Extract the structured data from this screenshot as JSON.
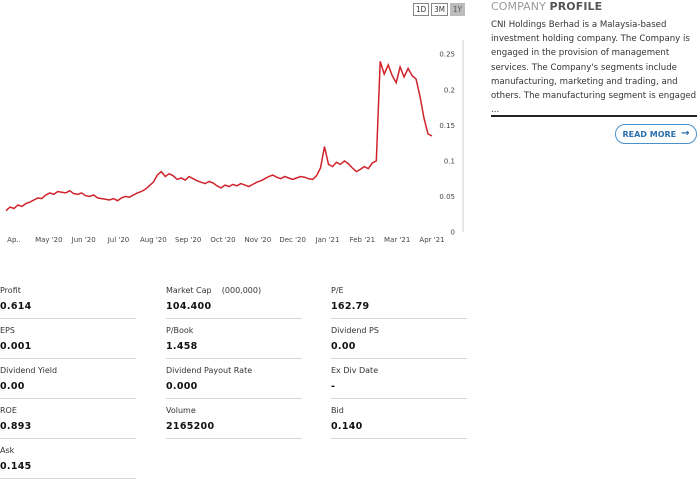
{
  "range_buttons": [
    {
      "label": "1D",
      "active": false
    },
    {
      "label": "3M",
      "active": false
    },
    {
      "label": "1Y",
      "active": true
    }
  ],
  "chart_data": {
    "type": "line",
    "color": "#d0222a",
    "x_labels": [
      "Ap..",
      "May '20",
      "Jun '20",
      "Jul '20",
      "Aug '20",
      "Sep '20",
      "Oct '20",
      "Nov '20",
      "Dec '20",
      "Jan '21",
      "Feb '21",
      "Mar '21",
      "Apr '21"
    ],
    "y_ticks": [
      "0",
      "0.05",
      "0.1",
      "0.15",
      "0.2",
      "0.25"
    ],
    "ylim": [
      0,
      0.27
    ],
    "series": [
      {
        "points": [
          [
            0,
            0.03
          ],
          [
            1,
            0.035
          ],
          [
            2,
            0.033
          ],
          [
            3,
            0.038
          ],
          [
            4,
            0.036
          ],
          [
            5,
            0.04
          ],
          [
            6,
            0.042
          ],
          [
            7,
            0.045
          ],
          [
            8,
            0.048
          ],
          [
            9,
            0.047
          ],
          [
            10,
            0.052
          ],
          [
            11,
            0.055
          ],
          [
            12,
            0.053
          ],
          [
            13,
            0.057
          ],
          [
            14,
            0.056
          ],
          [
            15,
            0.055
          ],
          [
            16,
            0.058
          ],
          [
            17,
            0.054
          ],
          [
            18,
            0.053
          ],
          [
            19,
            0.055
          ],
          [
            20,
            0.051
          ],
          [
            21,
            0.05
          ],
          [
            22,
            0.052
          ],
          [
            23,
            0.048
          ],
          [
            24,
            0.047
          ],
          [
            25,
            0.046
          ],
          [
            26,
            0.045
          ],
          [
            27,
            0.047
          ],
          [
            28,
            0.044
          ],
          [
            29,
            0.048
          ],
          [
            30,
            0.05
          ],
          [
            31,
            0.049
          ],
          [
            32,
            0.052
          ],
          [
            33,
            0.055
          ],
          [
            34,
            0.057
          ],
          [
            35,
            0.06
          ],
          [
            36,
            0.065
          ],
          [
            37,
            0.07
          ],
          [
            38,
            0.08
          ],
          [
            39,
            0.085
          ],
          [
            40,
            0.078
          ],
          [
            41,
            0.082
          ],
          [
            42,
            0.079
          ],
          [
            43,
            0.074
          ],
          [
            44,
            0.076
          ],
          [
            45,
            0.073
          ],
          [
            46,
            0.078
          ],
          [
            47,
            0.075
          ],
          [
            48,
            0.072
          ],
          [
            49,
            0.07
          ],
          [
            50,
            0.068
          ],
          [
            51,
            0.071
          ],
          [
            52,
            0.069
          ],
          [
            53,
            0.065
          ],
          [
            54,
            0.062
          ],
          [
            55,
            0.066
          ],
          [
            56,
            0.064
          ],
          [
            57,
            0.067
          ],
          [
            58,
            0.065
          ],
          [
            59,
            0.068
          ],
          [
            60,
            0.066
          ],
          [
            61,
            0.064
          ],
          [
            62,
            0.067
          ],
          [
            63,
            0.07
          ],
          [
            64,
            0.072
          ],
          [
            65,
            0.075
          ],
          [
            66,
            0.078
          ],
          [
            67,
            0.08
          ],
          [
            68,
            0.077
          ],
          [
            69,
            0.075
          ],
          [
            70,
            0.078
          ],
          [
            71,
            0.076
          ],
          [
            72,
            0.074
          ],
          [
            73,
            0.076
          ],
          [
            74,
            0.078
          ],
          [
            75,
            0.077
          ],
          [
            76,
            0.075
          ],
          [
            77,
            0.074
          ],
          [
            78,
            0.079
          ],
          [
            79,
            0.09
          ],
          [
            80,
            0.12
          ],
          [
            81,
            0.095
          ],
          [
            82,
            0.092
          ],
          [
            83,
            0.098
          ],
          [
            84,
            0.095
          ],
          [
            85,
            0.1
          ],
          [
            86,
            0.096
          ],
          [
            87,
            0.09
          ],
          [
            88,
            0.085
          ],
          [
            89,
            0.088
          ],
          [
            90,
            0.092
          ],
          [
            91,
            0.089
          ],
          [
            92,
            0.097
          ],
          [
            93,
            0.1
          ],
          [
            94,
            0.24
          ],
          [
            95,
            0.222
          ],
          [
            96,
            0.235
          ],
          [
            97,
            0.22
          ],
          [
            98,
            0.21
          ],
          [
            99,
            0.232
          ],
          [
            100,
            0.218
          ],
          [
            101,
            0.23
          ],
          [
            102,
            0.22
          ],
          [
            103,
            0.215
          ],
          [
            104,
            0.19
          ],
          [
            105,
            0.16
          ],
          [
            106,
            0.138
          ],
          [
            107,
            0.135
          ]
        ]
      }
    ]
  },
  "profile": {
    "title_light": "COMPANY",
    "title_bold": "PROFILE",
    "text": "CNI Holdings Berhad is a Malaysia-based investment holding company. The Company is engaged in the provision of management services. The Company's segments include manufacturing, marketing and trading, and others. The manufacturing segment is engaged ...",
    "read_more_label": "READ MORE",
    "arrow_icon": "arrow-right-icon"
  },
  "stats": [
    {
      "label": "Profit",
      "value": "0.614"
    },
    {
      "label": "Market Cap    (000,000)",
      "value": "104.400"
    },
    {
      "label": "P/E",
      "value": "162.79"
    },
    {
      "label": "EPS",
      "value": "0.001"
    },
    {
      "label": "P/Book",
      "value": "1.458"
    },
    {
      "label": "Dividend PS",
      "value": "0.00"
    },
    {
      "label": "Dividend Yield",
      "value": "0.00"
    },
    {
      "label": "Dividend Payout Rate",
      "value": "0.000"
    },
    {
      "label": "Ex Div Date",
      "value": "-"
    },
    {
      "label": "ROE",
      "value": "0.893"
    },
    {
      "label": "Volume",
      "value": "2165200"
    },
    {
      "label": "Bid",
      "value": "0.140"
    },
    {
      "label": "Ask",
      "value": "0.145"
    }
  ]
}
